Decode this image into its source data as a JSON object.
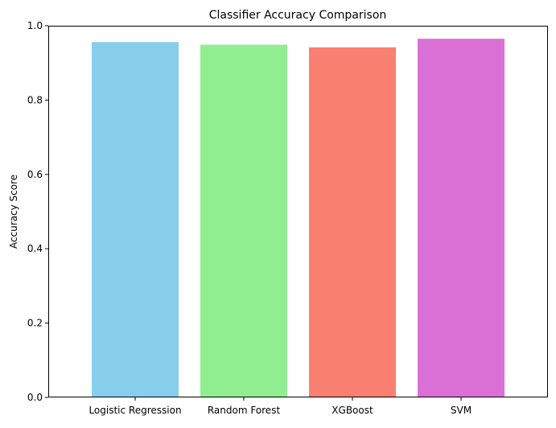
{
  "chart_data": {
    "type": "bar",
    "title": "Classifier Accuracy Comparison",
    "xlabel": "",
    "ylabel": "Accuracy Score",
    "categories": [
      "Logistic Regression",
      "Random Forest",
      "XGBoost",
      "SVM"
    ],
    "values": [
      0.956,
      0.949,
      0.942,
      0.965
    ],
    "colors": [
      "#87ceeb",
      "#90ee90",
      "#fa8072",
      "#da70d6"
    ],
    "ylim": [
      0,
      1.0
    ],
    "yticks": [
      "0.0",
      "0.2",
      "0.4",
      "0.6",
      "0.8",
      "1.0"
    ],
    "grid": false,
    "legend": "none"
  }
}
